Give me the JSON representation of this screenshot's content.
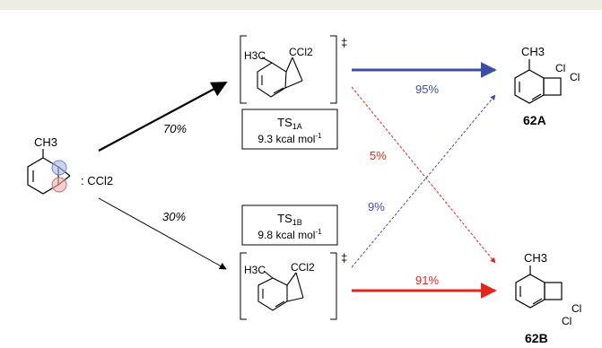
{
  "reactant": {
    "substituent": "CH3",
    "carbene": ": CCl2"
  },
  "pathways": {
    "upper_percent": "70%",
    "lower_percent": "30%"
  },
  "ts_1A": {
    "label": "TS1A",
    "label_main": "TS",
    "label_sub": "1A",
    "energy": "9.3 kcal mol-1",
    "energy_main": "9.3 kcal mol",
    "energy_sup": "-1",
    "methyl": "H3C",
    "ccl2": "CCl2",
    "dagger": "‡"
  },
  "ts_1B": {
    "label": "TS1B",
    "label_main": "TS",
    "label_sub": "1B",
    "energy": "9.8 kcal mol-1",
    "energy_main": "9.8 kcal mol",
    "energy_sup": "-1",
    "methyl": "H3C",
    "ccl2": "CCl2",
    "dagger": "‡"
  },
  "selectivity": {
    "ts1a_to_62a": "95%",
    "ts1a_to_62b": "5%",
    "ts1b_to_62a": "9%",
    "ts1b_to_62b": "91%"
  },
  "product_62A": {
    "name": "62A",
    "methyl": "CH3",
    "cl_a": "Cl",
    "cl_b": "Cl"
  },
  "product_62B": {
    "name": "62B",
    "methyl": "CH3",
    "cl_a": "Cl",
    "cl_b": "Cl"
  },
  "colors": {
    "blue": "#3f4ea3",
    "red": "#e1261c",
    "black": "#000000"
  }
}
